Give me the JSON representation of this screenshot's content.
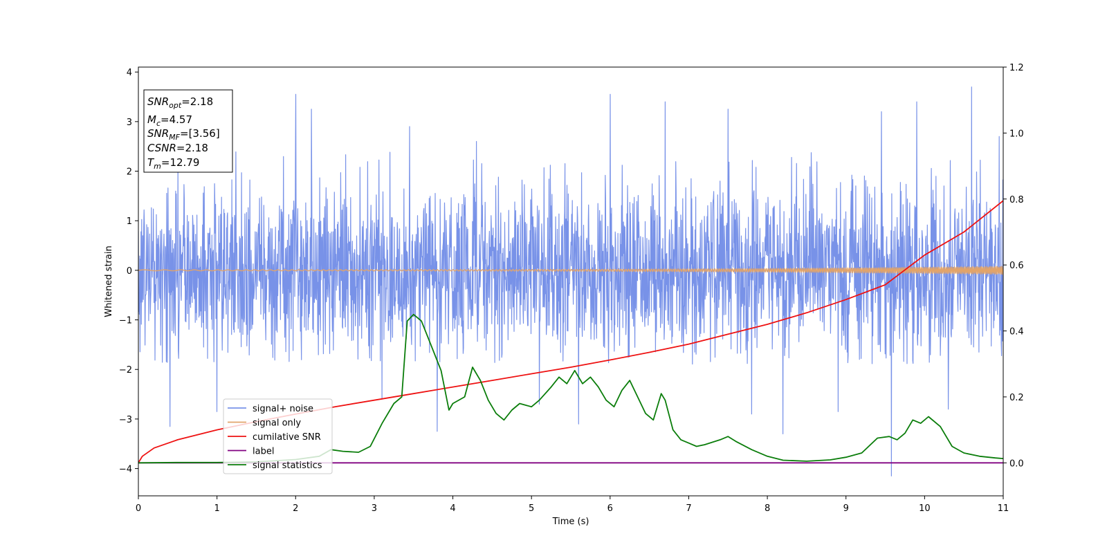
{
  "chart_data": {
    "type": "line",
    "xlabel": "Time (s)",
    "ylabel": "Whitened strain",
    "xlim": [
      0,
      11
    ],
    "ylim": [
      -4.55,
      4.1
    ],
    "y2lim": [
      -0.1,
      1.2
    ],
    "x_ticks": [
      "0",
      "1",
      "2",
      "3",
      "4",
      "5",
      "6",
      "7",
      "8",
      "9",
      "10",
      "11"
    ],
    "y_ticks": [
      "4",
      "3",
      "2",
      "1",
      "0",
      "−1",
      "−2",
      "−3",
      "−4"
    ],
    "y2_ticks": [
      "1.2",
      "1.0",
      "0.8",
      "0.6",
      "0.4",
      "0.2",
      "0.0"
    ],
    "grid": false,
    "legend_position": "lower-left",
    "info_box": {
      "snr_opt": "=2.18",
      "mc": "=4.57",
      "snr_mf": "=[3.56]",
      "csnr": "=2.18",
      "tm": "=12.79"
    },
    "series": [
      {
        "name": "signal+ noise",
        "axis": "left",
        "color": "#7892e8",
        "kind": "noise",
        "envelope_upper": 2.4,
        "envelope_lower": -1.9,
        "noise_sd": 0.85,
        "spikes": [
          [
            0.4,
            -3.15
          ],
          [
            1,
            -2.85
          ],
          [
            2.0,
            3.55
          ],
          [
            2.2,
            3.25
          ],
          [
            3.1,
            -2.6
          ],
          [
            3.45,
            2.9
          ],
          [
            3.8,
            -3.25
          ],
          [
            4.3,
            2.6
          ],
          [
            5.1,
            -2.7
          ],
          [
            5.6,
            -3.1
          ],
          [
            6.0,
            3.55
          ],
          [
            6.7,
            3.4
          ],
          [
            7.5,
            3.25
          ],
          [
            7.8,
            -2.9
          ],
          [
            8.2,
            -3.3
          ],
          [
            8.9,
            -2.85
          ],
          [
            9.45,
            3.2
          ],
          [
            9.58,
            -4.15
          ],
          [
            9.9,
            3.4
          ],
          [
            10.3,
            -2.8
          ],
          [
            10.6,
            3.7
          ],
          [
            10.95,
            2.7
          ]
        ]
      },
      {
        "name": "signal only",
        "axis": "left",
        "color": "#e2a46a",
        "kind": "chirp",
        "amplitude_start": 0.01,
        "amplitude_end": 0.08
      },
      {
        "name": "cumilative SNR",
        "axis": "right",
        "color": "#ee1111",
        "x": [
          0.0,
          0.05,
          0.2,
          0.5,
          1.0,
          1.5,
          2.0,
          2.5,
          3.0,
          3.5,
          4.0,
          4.5,
          5.0,
          5.5,
          6.0,
          6.5,
          7.0,
          7.5,
          8.0,
          8.5,
          9.0,
          9.5,
          10.0,
          10.5,
          11.0
        ],
        "y": [
          0.0,
          0.02,
          0.045,
          0.07,
          0.1,
          0.125,
          0.148,
          0.17,
          0.19,
          0.21,
          0.23,
          0.25,
          0.27,
          0.29,
          0.312,
          0.335,
          0.36,
          0.39,
          0.42,
          0.455,
          0.495,
          0.54,
          0.63,
          0.7,
          0.795
        ]
      },
      {
        "name": "label",
        "axis": "right",
        "color": "#800080",
        "x": [
          0,
          11
        ],
        "y": [
          0.0,
          0.0
        ]
      },
      {
        "name": "signal statistics",
        "axis": "right",
        "color": "#0a7d0a",
        "x": [
          0.0,
          0.5,
          1.0,
          1.5,
          2.0,
          2.3,
          2.45,
          2.6,
          2.8,
          2.95,
          3.1,
          3.25,
          3.35,
          3.42,
          3.5,
          3.6,
          3.7,
          3.85,
          3.95,
          4.0,
          4.15,
          4.25,
          4.35,
          4.45,
          4.55,
          4.65,
          4.75,
          4.85,
          5.0,
          5.1,
          5.25,
          5.35,
          5.45,
          5.55,
          5.65,
          5.75,
          5.85,
          5.95,
          6.05,
          6.15,
          6.25,
          6.35,
          6.45,
          6.55,
          6.65,
          6.7,
          6.8,
          6.9,
          7.0,
          7.1,
          7.2,
          7.4,
          7.5,
          7.6,
          7.8,
          8.0,
          8.2,
          8.5,
          8.8,
          9.0,
          9.2,
          9.4,
          9.55,
          9.65,
          9.75,
          9.85,
          9.95,
          10.05,
          10.2,
          10.35,
          10.5,
          10.7,
          10.9,
          11.0
        ],
        "y": [
          0.0,
          0.001,
          0.001,
          0.003,
          0.01,
          0.02,
          0.04,
          0.035,
          0.032,
          0.05,
          0.12,
          0.18,
          0.2,
          0.43,
          0.45,
          0.43,
          0.37,
          0.28,
          0.16,
          0.18,
          0.2,
          0.29,
          0.25,
          0.19,
          0.15,
          0.13,
          0.16,
          0.18,
          0.17,
          0.19,
          0.23,
          0.26,
          0.24,
          0.28,
          0.24,
          0.26,
          0.23,
          0.19,
          0.17,
          0.22,
          0.25,
          0.2,
          0.15,
          0.13,
          0.21,
          0.19,
          0.1,
          0.07,
          0.06,
          0.05,
          0.055,
          0.07,
          0.08,
          0.065,
          0.04,
          0.02,
          0.008,
          0.005,
          0.009,
          0.017,
          0.03,
          0.075,
          0.08,
          0.07,
          0.09,
          0.13,
          0.12,
          0.14,
          0.11,
          0.05,
          0.03,
          0.02,
          0.015,
          0.013
        ]
      }
    ]
  }
}
